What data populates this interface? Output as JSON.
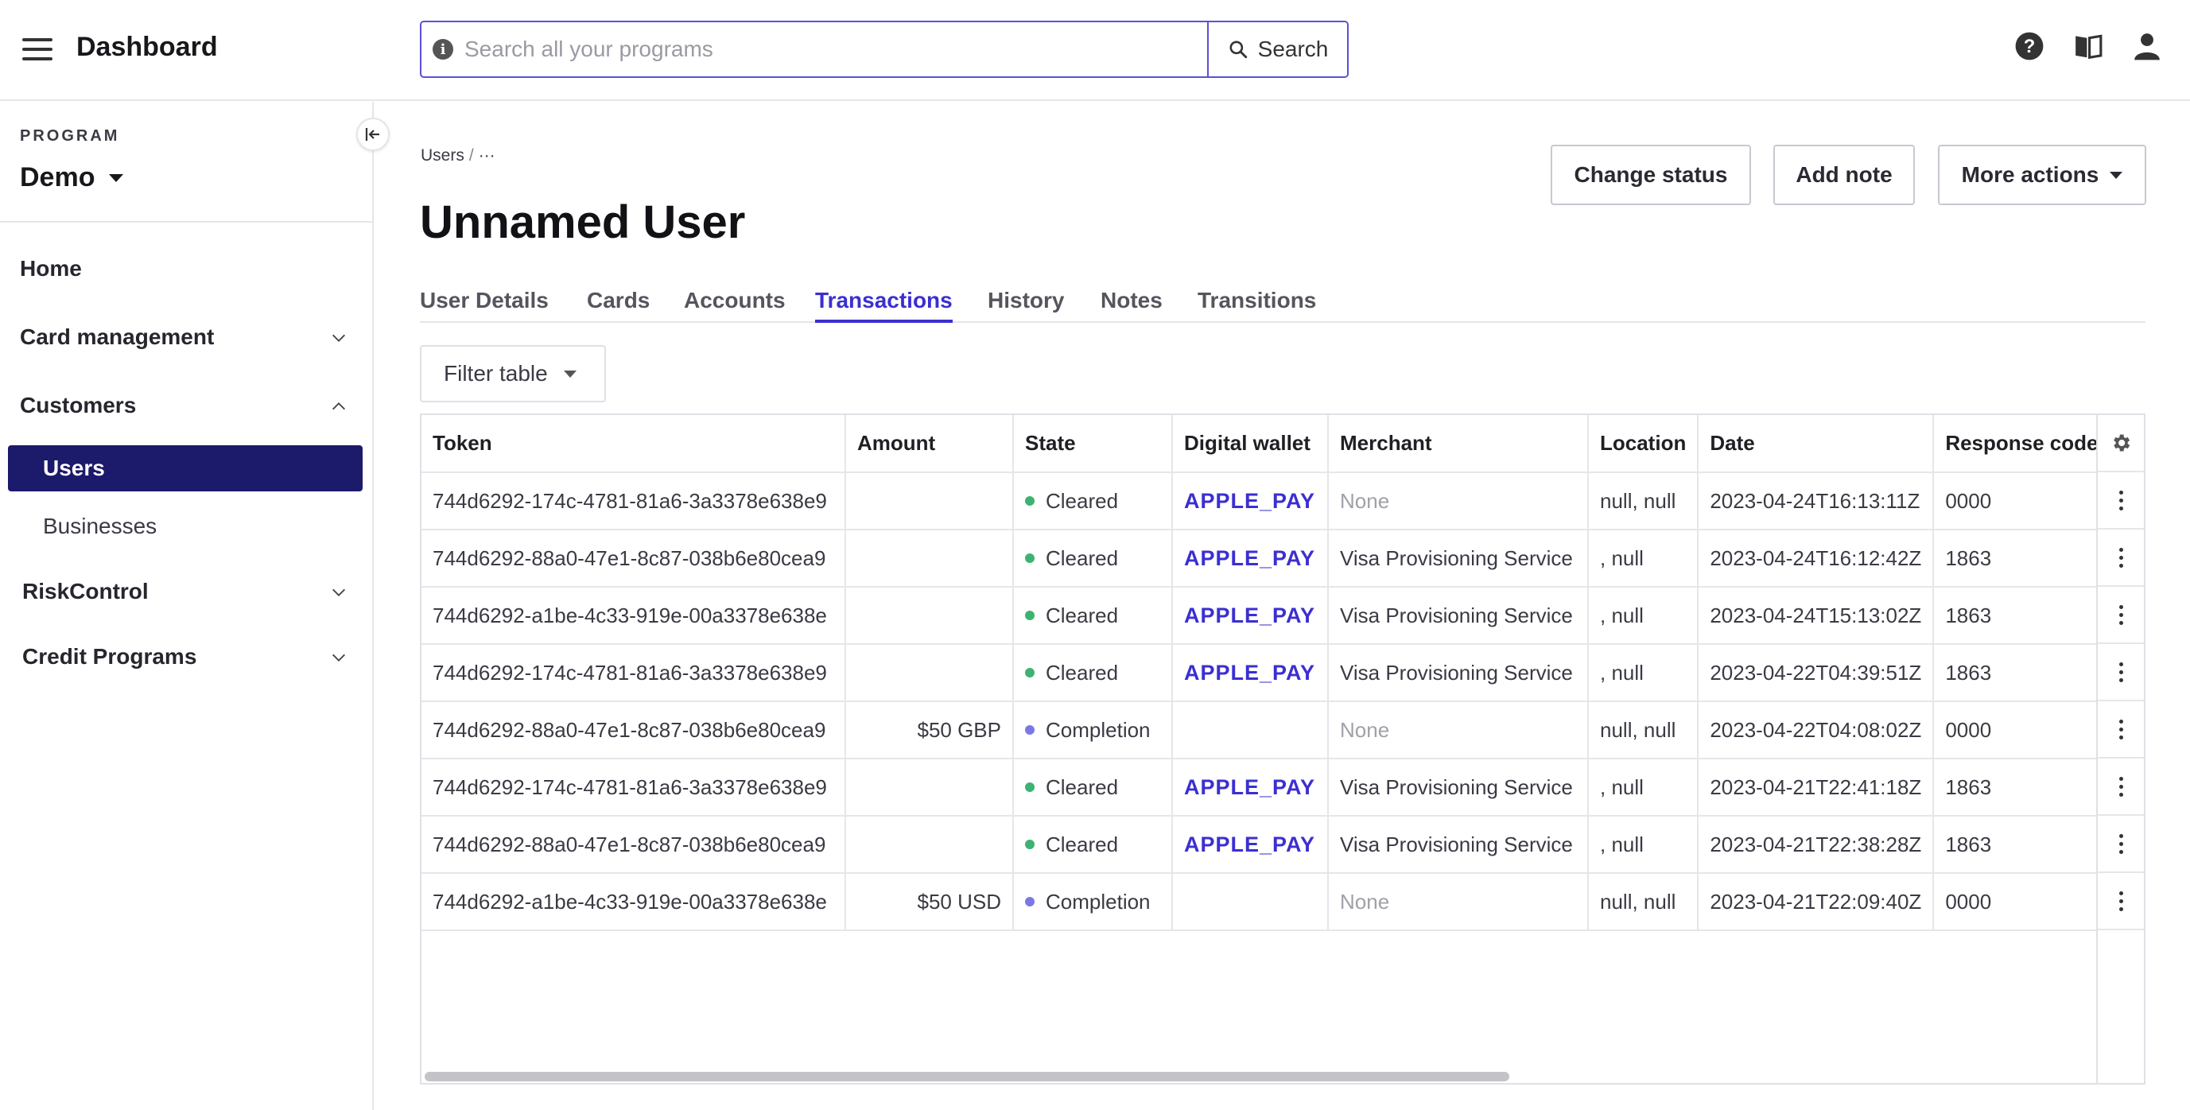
{
  "header": {
    "title": "Dashboard",
    "search_placeholder": "Search all your programs",
    "search_button": "Search"
  },
  "sidebar": {
    "program_label": "PROGRAM",
    "program_value": "Demo",
    "items": {
      "home": "Home",
      "card_management": "Card management",
      "customers": "Customers",
      "users": "Users",
      "businesses": "Businesses",
      "risk_control": "RiskControl",
      "credit_programs": "Credit Programs"
    }
  },
  "breadcrumb": {
    "root": "Users",
    "separator": "/",
    "current": "···"
  },
  "page": {
    "title": "Unnamed User"
  },
  "actions": {
    "change_status": "Change status",
    "add_note": "Add note",
    "more_actions": "More actions"
  },
  "tabs": [
    "User Details",
    "Cards",
    "Accounts",
    "Transactions",
    "History",
    "Notes",
    "Transitions"
  ],
  "active_tab": "Transactions",
  "filter": {
    "label": "Filter table"
  },
  "table": {
    "columns": [
      "Token",
      "Amount",
      "State",
      "Digital wallet",
      "Merchant",
      "Location",
      "Date",
      "Response code"
    ],
    "rows": [
      {
        "token": "744d6292-174c-4781-81a6-3a3378e638e9",
        "amount": "",
        "state": "Cleared",
        "wallet": "APPLE_PAY",
        "merchant": "None",
        "location": "null, null",
        "date": "2023-04-24T16:13:11Z",
        "code": "0000"
      },
      {
        "token": "744d6292-88a0-47e1-8c87-038b6e80cea9",
        "amount": "",
        "state": "Cleared",
        "wallet": "APPLE_PAY",
        "merchant": "Visa Provisioning Service",
        "location": ", null",
        "date": "2023-04-24T16:12:42Z",
        "code": "1863"
      },
      {
        "token": "744d6292-a1be-4c33-919e-00a3378e638e",
        "amount": "",
        "state": "Cleared",
        "wallet": "APPLE_PAY",
        "merchant": "Visa Provisioning Service",
        "location": ", null",
        "date": "2023-04-24T15:13:02Z",
        "code": "1863"
      },
      {
        "token": "744d6292-174c-4781-81a6-3a3378e638e9",
        "amount": "",
        "state": "Cleared",
        "wallet": "APPLE_PAY",
        "merchant": "Visa Provisioning Service",
        "location": ", null",
        "date": "2023-04-22T04:39:51Z",
        "code": "1863"
      },
      {
        "token": "744d6292-88a0-47e1-8c87-038b6e80cea9",
        "amount": "$50 GBP",
        "state": "Completion",
        "wallet": "",
        "merchant": "None",
        "location": "null, null",
        "date": "2023-04-22T04:08:02Z",
        "code": "0000"
      },
      {
        "token": "744d6292-174c-4781-81a6-3a3378e638e9",
        "amount": "",
        "state": "Cleared",
        "wallet": "APPLE_PAY",
        "merchant": "Visa Provisioning Service",
        "location": ", null",
        "date": "2023-04-21T22:41:18Z",
        "code": "1863"
      },
      {
        "token": "744d6292-88a0-47e1-8c87-038b6e80cea9",
        "amount": "",
        "state": "Cleared",
        "wallet": "APPLE_PAY",
        "merchant": "Visa Provisioning Service",
        "location": ", null",
        "date": "2023-04-21T22:38:28Z",
        "code": "1863"
      },
      {
        "token": "744d6292-a1be-4c33-919e-00a3378e638e",
        "amount": "$50 USD",
        "state": "Completion",
        "wallet": "",
        "merchant": "None",
        "location": "null, null",
        "date": "2023-04-21T22:09:40Z",
        "code": "0000"
      }
    ]
  },
  "colors": {
    "accent": "#3b2fd1",
    "nav_active": "#1c1a6a",
    "cleared_dot": "#3cb371",
    "completion_dot": "#7b78e6"
  },
  "icons": [
    "menu-icon",
    "info-icon",
    "search-icon",
    "help-icon",
    "book-icon",
    "user-icon",
    "collapse-sidebar-icon",
    "chevron-down-icon",
    "chevron-up-icon",
    "gear-icon",
    "kebab-menu-icon"
  ]
}
